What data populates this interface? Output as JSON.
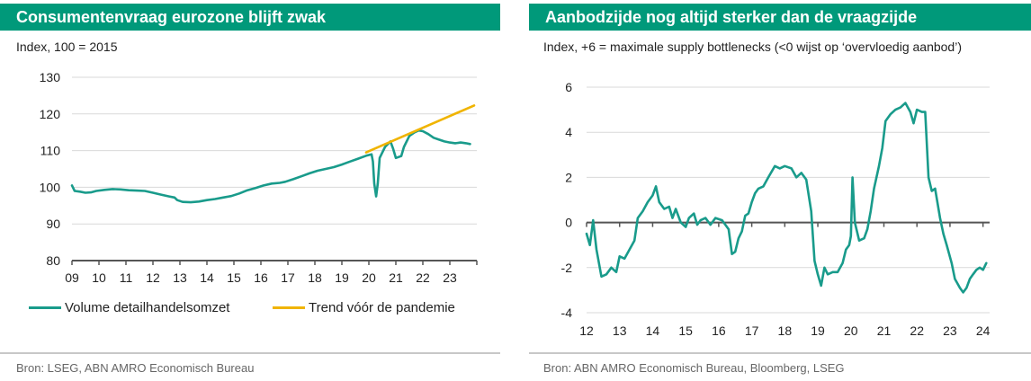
{
  "panels": [
    {
      "title": "Consumentenvraag eurozone blijft zwak",
      "subtitle": "Index, 100 = 2015",
      "source": "Bron: LSEG, ABN AMRO Economisch Bureau"
    },
    {
      "title": "Aanbodzijde nog altijd sterker dan de vraagzijde",
      "subtitle": "Index, +6 = maximale supply bottlenecks (<0 wijst op ‘overvloedig aanbod’)",
      "source": "Bron: ABN AMRO Economisch Bureau, Bloomberg, LSEG"
    }
  ],
  "chart_data": [
    {
      "type": "line",
      "title": "Consumentenvraag eurozone blijft zwak",
      "ylabel": "Index, 100 = 2015",
      "xlim": [
        2009,
        2024
      ],
      "ylim": [
        80,
        130
      ],
      "yticks": [
        80,
        90,
        100,
        110,
        120,
        130
      ],
      "xtick_labels": [
        "09",
        "10",
        "11",
        "12",
        "13",
        "14",
        "15",
        "16",
        "17",
        "18",
        "19",
        "20",
        "21",
        "22",
        "23"
      ],
      "grid": true,
      "legend": "bottom",
      "series": [
        {
          "name": "Volume detailhandelsomzet",
          "color": "#199b8b",
          "points": [
            [
              2009.0,
              100.5
            ],
            [
              2009.1,
              99
            ],
            [
              2009.3,
              98.8
            ],
            [
              2009.5,
              98.5
            ],
            [
              2009.7,
              98.6
            ],
            [
              2009.9,
              99
            ],
            [
              2010.2,
              99.3
            ],
            [
              2010.5,
              99.5
            ],
            [
              2010.8,
              99.4
            ],
            [
              2011.1,
              99.2
            ],
            [
              2011.4,
              99.1
            ],
            [
              2011.7,
              99
            ],
            [
              2012.0,
              98.5
            ],
            [
              2012.3,
              98
            ],
            [
              2012.6,
              97.5
            ],
            [
              2012.8,
              97.2
            ],
            [
              2012.9,
              96.5
            ],
            [
              2013.1,
              96
            ],
            [
              2013.4,
              95.9
            ],
            [
              2013.7,
              96.1
            ],
            [
              2014.0,
              96.5
            ],
            [
              2014.3,
              96.8
            ],
            [
              2014.6,
              97.2
            ],
            [
              2014.9,
              97.6
            ],
            [
              2015.2,
              98.3
            ],
            [
              2015.5,
              99.2
            ],
            [
              2015.8,
              99.8
            ],
            [
              2016.1,
              100.5
            ],
            [
              2016.4,
              101
            ],
            [
              2016.7,
              101.2
            ],
            [
              2016.9,
              101.5
            ],
            [
              2017.2,
              102.2
            ],
            [
              2017.5,
              103
            ],
            [
              2017.8,
              103.8
            ],
            [
              2018.1,
              104.5
            ],
            [
              2018.4,
              105
            ],
            [
              2018.7,
              105.5
            ],
            [
              2019.0,
              106.2
            ],
            [
              2019.3,
              107
            ],
            [
              2019.6,
              107.8
            ],
            [
              2019.9,
              108.6
            ],
            [
              2020.1,
              109
            ],
            [
              2020.15,
              107
            ],
            [
              2020.2,
              101
            ],
            [
              2020.27,
              97.5
            ],
            [
              2020.33,
              101
            ],
            [
              2020.4,
              108
            ],
            [
              2020.6,
              111
            ],
            [
              2020.8,
              112.5
            ],
            [
              2020.9,
              110.5
            ],
            [
              2021.0,
              108
            ],
            [
              2021.2,
              108.5
            ],
            [
              2021.3,
              111
            ],
            [
              2021.5,
              114
            ],
            [
              2021.7,
              115
            ],
            [
              2021.85,
              115.5
            ],
            [
              2022.0,
              115.3
            ],
            [
              2022.2,
              114.5
            ],
            [
              2022.4,
              113.5
            ],
            [
              2022.6,
              113
            ],
            [
              2022.8,
              112.5
            ],
            [
              2023.0,
              112.2
            ],
            [
              2023.2,
              112
            ],
            [
              2023.4,
              112.2
            ],
            [
              2023.6,
              112
            ],
            [
              2023.75,
              111.8
            ]
          ]
        },
        {
          "name": "Trend vóór de pandemie",
          "color": "#f0b400",
          "points": [
            [
              2019.9,
              109.5
            ],
            [
              2023.9,
              122.3
            ]
          ]
        }
      ]
    },
    {
      "type": "line",
      "title": "Aanbodzijde nog altijd sterker dan de vraagzijde",
      "ylabel": "Index, +6 = maximale supply bottlenecks (<0 wijst op ‘overvloedig aanbod’)",
      "xlim": [
        2012,
        2024.2
      ],
      "ylim": [
        -4,
        6
      ],
      "yticks": [
        -4,
        -2,
        0,
        2,
        4,
        6
      ],
      "xtick_labels": [
        "12",
        "13",
        "14",
        "15",
        "16",
        "17",
        "18",
        "19",
        "20",
        "21",
        "22",
        "23",
        "24"
      ],
      "grid": true,
      "series": [
        {
          "color": "#199b8b",
          "points": [
            [
              2012.0,
              -0.5
            ],
            [
              2012.1,
              -1
            ],
            [
              2012.2,
              0.1
            ],
            [
              2012.3,
              -1.2
            ],
            [
              2012.45,
              -2.4
            ],
            [
              2012.6,
              -2.3
            ],
            [
              2012.75,
              -2
            ],
            [
              2012.9,
              -2.2
            ],
            [
              2013.0,
              -1.5
            ],
            [
              2013.15,
              -1.6
            ],
            [
              2013.3,
              -1.2
            ],
            [
              2013.45,
              -0.8
            ],
            [
              2013.55,
              0.2
            ],
            [
              2013.7,
              0.5
            ],
            [
              2013.85,
              0.9
            ],
            [
              2014.0,
              1.2
            ],
            [
              2014.1,
              1.6
            ],
            [
              2014.2,
              0.9
            ],
            [
              2014.35,
              0.6
            ],
            [
              2014.5,
              0.7
            ],
            [
              2014.6,
              0.2
            ],
            [
              2014.7,
              0.6
            ],
            [
              2014.85,
              0
            ],
            [
              2015.0,
              -0.2
            ],
            [
              2015.1,
              0.2
            ],
            [
              2015.25,
              0.4
            ],
            [
              2015.35,
              -0.1
            ],
            [
              2015.45,
              0.1
            ],
            [
              2015.6,
              0.2
            ],
            [
              2015.75,
              -0.1
            ],
            [
              2015.9,
              0.2
            ],
            [
              2016.1,
              0.1
            ],
            [
              2016.3,
              -0.3
            ],
            [
              2016.4,
              -1.4
            ],
            [
              2016.5,
              -1.3
            ],
            [
              2016.6,
              -0.7
            ],
            [
              2016.7,
              -0.4
            ],
            [
              2016.8,
              0.3
            ],
            [
              2016.9,
              0.4
            ],
            [
              2017.0,
              0.9
            ],
            [
              2017.1,
              1.3
            ],
            [
              2017.2,
              1.5
            ],
            [
              2017.35,
              1.6
            ],
            [
              2017.5,
              2.0
            ],
            [
              2017.7,
              2.5
            ],
            [
              2017.85,
              2.4
            ],
            [
              2018.0,
              2.5
            ],
            [
              2018.2,
              2.4
            ],
            [
              2018.35,
              2.0
            ],
            [
              2018.5,
              2.2
            ],
            [
              2018.65,
              1.9
            ],
            [
              2018.8,
              0.5
            ],
            [
              2018.9,
              -1.7
            ],
            [
              2019.0,
              -2.3
            ],
            [
              2019.1,
              -2.8
            ],
            [
              2019.2,
              -2.0
            ],
            [
              2019.3,
              -2.3
            ],
            [
              2019.45,
              -2.2
            ],
            [
              2019.6,
              -2.2
            ],
            [
              2019.75,
              -1.8
            ],
            [
              2019.85,
              -1.2
            ],
            [
              2019.95,
              -1.0
            ],
            [
              2020.0,
              -0.6
            ],
            [
              2020.05,
              2.0
            ],
            [
              2020.12,
              0
            ],
            [
              2020.25,
              -0.8
            ],
            [
              2020.4,
              -0.7
            ],
            [
              2020.5,
              -0.3
            ],
            [
              2020.6,
              0.5
            ],
            [
              2020.7,
              1.5
            ],
            [
              2020.85,
              2.5
            ],
            [
              2020.95,
              3.3
            ],
            [
              2021.05,
              4.5
            ],
            [
              2021.2,
              4.8
            ],
            [
              2021.35,
              5.0
            ],
            [
              2021.5,
              5.1
            ],
            [
              2021.65,
              5.3
            ],
            [
              2021.8,
              4.9
            ],
            [
              2021.9,
              4.4
            ],
            [
              2022.0,
              5.0
            ],
            [
              2022.15,
              4.9
            ],
            [
              2022.25,
              4.9
            ],
            [
              2022.35,
              2.0
            ],
            [
              2022.45,
              1.4
            ],
            [
              2022.55,
              1.5
            ],
            [
              2022.7,
              0.2
            ],
            [
              2022.8,
              -0.5
            ],
            [
              2022.9,
              -1.0
            ],
            [
              2023.05,
              -1.8
            ],
            [
              2023.15,
              -2.5
            ],
            [
              2023.3,
              -2.9
            ],
            [
              2023.4,
              -3.1
            ],
            [
              2023.5,
              -2.9
            ],
            [
              2023.6,
              -2.5
            ],
            [
              2023.7,
              -2.3
            ],
            [
              2023.8,
              -2.1
            ],
            [
              2023.9,
              -2.0
            ],
            [
              2024.0,
              -2.1
            ],
            [
              2024.1,
              -1.8
            ]
          ]
        }
      ]
    }
  ]
}
